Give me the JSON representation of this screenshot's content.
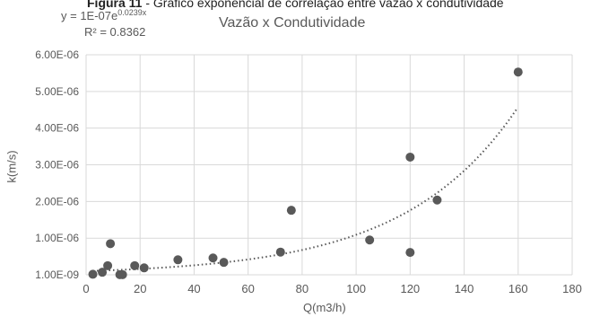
{
  "caption": {
    "label": "Figura 11",
    "text": " - Gráfico exponencial de correlação entre vazão x condutividade"
  },
  "trendline": {
    "eq_prefix": "y = 1E-07e",
    "eq_exp": "0.0239x",
    "r2": "R² = 0.8362"
  },
  "colors": {
    "points": "#595959",
    "grid": "#d9d9d9",
    "trend": "#595959",
    "text": "#595959"
  },
  "chart_data": {
    "type": "scatter",
    "title": "Vazão x Condutividade",
    "xlabel": "Q(m3/h)",
    "ylabel": "k(m/s)",
    "xlim": [
      0,
      180
    ],
    "ylim": [
      1e-09,
      6e-06
    ],
    "x_ticks": [
      0,
      20,
      40,
      60,
      80,
      100,
      120,
      140,
      160,
      180
    ],
    "x_tick_labels": [
      "0",
      "20",
      "40",
      "60",
      "80",
      "100",
      "120",
      "140",
      "160",
      "180"
    ],
    "y_ticks": [
      1e-09,
      1e-06,
      2e-06,
      3e-06,
      4e-06,
      5e-06,
      6e-06
    ],
    "y_tick_labels": [
      "1.00E-09",
      "1.00E-06",
      "2.00E-06",
      "3.00E-06",
      "4.00E-06",
      "5.00E-06",
      "6.00E-06"
    ],
    "grid": true,
    "trendline": {
      "type": "exponential",
      "a": 1e-07,
      "b": 0.0239,
      "x_range": [
        2.5,
        160
      ]
    },
    "series": [
      {
        "points": [
          [
            2.5,
            1.5e-08
          ],
          [
            6,
            7e-08
          ],
          [
            8,
            2.5e-07
          ],
          [
            9,
            8.5e-07
          ],
          [
            12.5,
            5e-09
          ],
          [
            13.5,
            5e-09
          ],
          [
            18,
            2.5e-07
          ],
          [
            21.5,
            1.9e-07
          ],
          [
            34,
            4.1e-07
          ],
          [
            47,
            4.6e-07
          ],
          [
            51,
            3.4e-07
          ],
          [
            72,
            6.2e-07
          ],
          [
            76,
            1.76e-06
          ],
          [
            105,
            9.5e-07
          ],
          [
            120,
            3.21e-06
          ],
          [
            120,
            6.1e-07
          ],
          [
            130,
            2.04e-06
          ],
          [
            160,
            5.53e-06
          ]
        ]
      }
    ]
  }
}
